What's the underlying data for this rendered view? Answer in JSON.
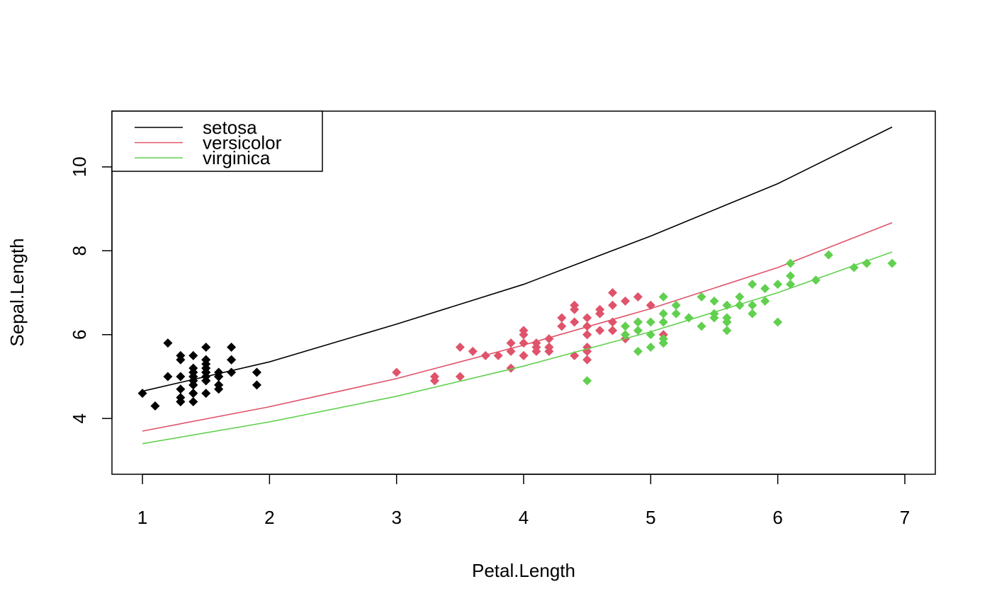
{
  "chart_data": {
    "type": "scatter",
    "title": "",
    "xlabel": "Petal.Length",
    "ylabel": "Sepal.Length",
    "xlim": [
      0.76,
      7.24
    ],
    "ylim": [
      2.67,
      11.33
    ],
    "x_ticks": [
      1,
      2,
      3,
      4,
      5,
      6,
      7
    ],
    "y_ticks": [
      4,
      6,
      8,
      10
    ],
    "grid": false,
    "legend": {
      "position": "top-left",
      "entries": [
        {
          "name": "setosa",
          "color": "#000000"
        },
        {
          "name": "versicolor",
          "color": "#DF536B"
        },
        {
          "name": "virginica",
          "color": "#61D04F"
        }
      ]
    },
    "series": [
      {
        "name": "setosa",
        "color": "#000000",
        "marker": "diamond",
        "points": [
          [
            1.4,
            5.1
          ],
          [
            1.4,
            4.9
          ],
          [
            1.3,
            4.7
          ],
          [
            1.5,
            4.6
          ],
          [
            1.4,
            5.0
          ],
          [
            1.7,
            5.4
          ],
          [
            1.4,
            4.6
          ],
          [
            1.5,
            5.0
          ],
          [
            1.4,
            4.4
          ],
          [
            1.5,
            4.9
          ],
          [
            1.5,
            5.4
          ],
          [
            1.6,
            4.8
          ],
          [
            1.4,
            4.8
          ],
          [
            1.1,
            4.3
          ],
          [
            1.2,
            5.8
          ],
          [
            1.5,
            5.7
          ],
          [
            1.3,
            5.4
          ],
          [
            1.4,
            5.1
          ],
          [
            1.7,
            5.7
          ],
          [
            1.5,
            5.1
          ],
          [
            1.7,
            5.4
          ],
          [
            1.5,
            5.1
          ],
          [
            1.0,
            4.6
          ],
          [
            1.7,
            5.1
          ],
          [
            1.9,
            4.8
          ],
          [
            1.6,
            5.0
          ],
          [
            1.6,
            5.0
          ],
          [
            1.5,
            5.2
          ],
          [
            1.4,
            5.2
          ],
          [
            1.6,
            4.7
          ],
          [
            1.6,
            4.8
          ],
          [
            1.5,
            5.4
          ],
          [
            1.5,
            5.2
          ],
          [
            1.4,
            5.5
          ],
          [
            1.5,
            4.9
          ],
          [
            1.2,
            5.0
          ],
          [
            1.3,
            5.5
          ],
          [
            1.4,
            4.9
          ],
          [
            1.3,
            4.4
          ],
          [
            1.5,
            5.1
          ],
          [
            1.3,
            5.0
          ],
          [
            1.3,
            4.5
          ],
          [
            1.3,
            4.4
          ],
          [
            1.6,
            5.0
          ],
          [
            1.9,
            5.1
          ],
          [
            1.4,
            4.8
          ],
          [
            1.6,
            5.1
          ],
          [
            1.4,
            4.6
          ],
          [
            1.5,
            5.3
          ],
          [
            1.4,
            5.0
          ]
        ],
        "curve": [
          [
            1.0,
            4.65
          ],
          [
            2.0,
            5.35
          ],
          [
            3.0,
            6.25
          ],
          [
            4.0,
            7.2
          ],
          [
            5.0,
            8.35
          ],
          [
            6.0,
            9.6
          ],
          [
            6.9,
            10.95
          ]
        ]
      },
      {
        "name": "versicolor",
        "color": "#DF536B",
        "marker": "diamond",
        "points": [
          [
            4.7,
            7.0
          ],
          [
            4.5,
            6.4
          ],
          [
            4.9,
            6.9
          ],
          [
            4.0,
            5.5
          ],
          [
            4.6,
            6.5
          ],
          [
            4.5,
            5.7
          ],
          [
            4.7,
            6.3
          ],
          [
            3.3,
            4.9
          ],
          [
            4.6,
            6.6
          ],
          [
            3.9,
            5.2
          ],
          [
            3.5,
            5.0
          ],
          [
            4.2,
            5.9
          ],
          [
            4.0,
            6.0
          ],
          [
            4.7,
            6.1
          ],
          [
            3.6,
            5.6
          ],
          [
            4.4,
            6.7
          ],
          [
            4.5,
            5.6
          ],
          [
            4.1,
            5.8
          ],
          [
            4.5,
            6.2
          ],
          [
            3.9,
            5.6
          ],
          [
            4.8,
            5.9
          ],
          [
            4.0,
            6.1
          ],
          [
            4.9,
            6.3
          ],
          [
            4.7,
            6.1
          ],
          [
            4.3,
            6.4
          ],
          [
            4.4,
            6.6
          ],
          [
            4.8,
            6.8
          ],
          [
            5.0,
            6.7
          ],
          [
            4.5,
            6.0
          ],
          [
            3.5,
            5.7
          ],
          [
            3.8,
            5.5
          ],
          [
            3.7,
            5.5
          ],
          [
            3.9,
            5.8
          ],
          [
            5.1,
            6.0
          ],
          [
            4.5,
            5.4
          ],
          [
            4.5,
            6.0
          ],
          [
            4.7,
            6.7
          ],
          [
            4.4,
            6.3
          ],
          [
            4.1,
            5.6
          ],
          [
            4.0,
            5.5
          ],
          [
            4.4,
            5.5
          ],
          [
            4.6,
            6.1
          ],
          [
            4.0,
            5.8
          ],
          [
            3.3,
            5.0
          ],
          [
            4.2,
            5.6
          ],
          [
            4.2,
            5.7
          ],
          [
            4.2,
            5.7
          ],
          [
            4.3,
            6.2
          ],
          [
            3.0,
            5.1
          ],
          [
            4.1,
            5.7
          ]
        ],
        "curve": [
          [
            1.0,
            3.7
          ],
          [
            2.0,
            4.28
          ],
          [
            3.0,
            4.95
          ],
          [
            4.0,
            5.75
          ],
          [
            5.0,
            6.62
          ],
          [
            6.0,
            7.6
          ],
          [
            6.9,
            8.67
          ]
        ]
      },
      {
        "name": "virginica",
        "color": "#61D04F",
        "marker": "diamond",
        "points": [
          [
            6.0,
            6.3
          ],
          [
            5.1,
            5.8
          ],
          [
            5.9,
            7.1
          ],
          [
            5.6,
            6.3
          ],
          [
            5.8,
            6.5
          ],
          [
            6.6,
            7.6
          ],
          [
            4.5,
            4.9
          ],
          [
            6.3,
            7.3
          ],
          [
            5.8,
            6.7
          ],
          [
            6.1,
            7.2
          ],
          [
            5.1,
            6.5
          ],
          [
            5.3,
            6.4
          ],
          [
            5.5,
            6.8
          ],
          [
            5.0,
            5.7
          ],
          [
            5.1,
            5.8
          ],
          [
            5.3,
            6.4
          ],
          [
            5.5,
            6.5
          ],
          [
            6.7,
            7.7
          ],
          [
            6.9,
            7.7
          ],
          [
            5.0,
            6.0
          ],
          [
            5.7,
            6.9
          ],
          [
            4.9,
            5.6
          ],
          [
            6.7,
            7.7
          ],
          [
            4.9,
            6.3
          ],
          [
            5.7,
            6.7
          ],
          [
            6.0,
            7.2
          ],
          [
            4.8,
            6.2
          ],
          [
            4.9,
            6.1
          ],
          [
            5.6,
            6.4
          ],
          [
            5.8,
            7.2
          ],
          [
            6.1,
            7.4
          ],
          [
            6.4,
            7.9
          ],
          [
            5.6,
            6.4
          ],
          [
            5.1,
            6.3
          ],
          [
            5.6,
            6.1
          ],
          [
            6.1,
            7.7
          ],
          [
            5.6,
            6.3
          ],
          [
            5.5,
            6.4
          ],
          [
            4.8,
            6.0
          ],
          [
            5.4,
            6.9
          ],
          [
            5.6,
            6.7
          ],
          [
            5.1,
            6.9
          ],
          [
            5.1,
            5.8
          ],
          [
            5.9,
            6.8
          ],
          [
            5.7,
            6.7
          ],
          [
            5.2,
            6.7
          ],
          [
            5.0,
            6.3
          ],
          [
            5.2,
            6.5
          ],
          [
            5.4,
            6.2
          ],
          [
            5.1,
            5.9
          ]
        ],
        "curve": [
          [
            1.0,
            3.4
          ],
          [
            2.0,
            3.92
          ],
          [
            3.0,
            4.53
          ],
          [
            4.0,
            5.25
          ],
          [
            5.0,
            6.07
          ],
          [
            6.0,
            7.0
          ],
          [
            6.9,
            7.97
          ]
        ]
      }
    ]
  }
}
